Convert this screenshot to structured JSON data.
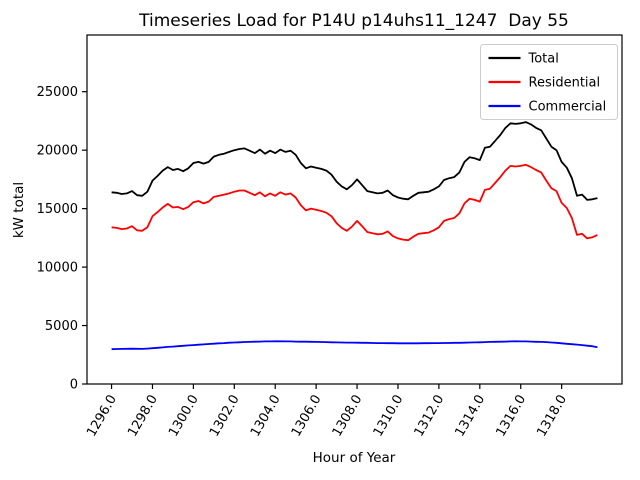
{
  "chart_data": {
    "type": "line",
    "title": "Timeseries Load for P14U p14uhs11_1247  Day 55",
    "xlabel": "Hour of Year",
    "ylabel": "kW total",
    "x_start": 1296.0,
    "x_step": 0.25,
    "n_points": 96,
    "xlim": [
      1294.8,
      1320.95
    ],
    "ylim": [
      0,
      29850
    ],
    "x_ticks": [
      1296,
      1298,
      1300,
      1302,
      1304,
      1306,
      1308,
      1310,
      1312,
      1314,
      1316,
      1318
    ],
    "x_tick_labels": [
      "1296.0",
      "1298.0",
      "1300.0",
      "1302.0",
      "1304.0",
      "1306.0",
      "1308.0",
      "1310.0",
      "1312.0",
      "1314.0",
      "1316.0",
      "1318.0"
    ],
    "x_tick_rotation": 60,
    "y_ticks": [
      0,
      5000,
      10000,
      15000,
      20000,
      25000
    ],
    "y_tick_labels": [
      "0",
      "5000",
      "10000",
      "15000",
      "20000",
      "25000"
    ],
    "grid": false,
    "legend_position": "upper right",
    "series": [
      {
        "name": "Total",
        "color": "#000000",
        "values": [
          16400,
          16350,
          16250,
          16300,
          16500,
          16150,
          16100,
          16450,
          17400,
          17800,
          18250,
          18550,
          18300,
          18400,
          18200,
          18450,
          18900,
          19000,
          18850,
          19000,
          19450,
          19600,
          19700,
          19850,
          20000,
          20100,
          20150,
          19950,
          19750,
          20050,
          19700,
          19950,
          19750,
          20050,
          19850,
          19950,
          19600,
          18900,
          18450,
          18600,
          18500,
          18400,
          18250,
          17900,
          17300,
          16900,
          16650,
          17000,
          17500,
          17000,
          16500,
          16400,
          16300,
          16350,
          16550,
          16150,
          15950,
          15850,
          15800,
          16100,
          16350,
          16400,
          16450,
          16650,
          16900,
          17450,
          17600,
          17700,
          18100,
          19000,
          19400,
          19300,
          19150,
          20200,
          20300,
          20800,
          21300,
          21900,
          22300,
          22250,
          22300,
          22400,
          22200,
          21900,
          21700,
          21000,
          20300,
          20000,
          19000,
          18500,
          17600,
          16100,
          16200,
          15750,
          15800,
          15900
        ]
      },
      {
        "name": "Residential",
        "color": "#ff0000",
        "values": [
          13400,
          13350,
          13250,
          13300,
          13500,
          13150,
          13100,
          13400,
          14350,
          14700,
          15100,
          15400,
          15100,
          15150,
          14950,
          15150,
          15550,
          15650,
          15450,
          15600,
          16000,
          16100,
          16200,
          16300,
          16450,
          16550,
          16550,
          16350,
          16150,
          16400,
          16050,
          16300,
          16100,
          16400,
          16200,
          16300,
          15950,
          15300,
          14850,
          15000,
          14900,
          14800,
          14650,
          14350,
          13750,
          13350,
          13100,
          13450,
          13950,
          13500,
          13000,
          12900,
          12800,
          12850,
          13050,
          12650,
          12450,
          12350,
          12300,
          12600,
          12850,
          12900,
          12950,
          13150,
          13400,
          13950,
          14100,
          14200,
          14600,
          15450,
          15850,
          15750,
          15600,
          16600,
          16700,
          17200,
          17700,
          18250,
          18650,
          18600,
          18650,
          18750,
          18550,
          18300,
          18100,
          17400,
          16750,
          16500,
          15500,
          15050,
          14200,
          12750,
          12850,
          12450,
          12550,
          12750
        ]
      },
      {
        "name": "Commercial",
        "color": "#0000ff",
        "values": [
          2980,
          2990,
          3000,
          3010,
          3020,
          3010,
          3000,
          3030,
          3060,
          3100,
          3130,
          3170,
          3200,
          3230,
          3270,
          3300,
          3330,
          3360,
          3390,
          3420,
          3450,
          3480,
          3500,
          3530,
          3550,
          3570,
          3590,
          3600,
          3620,
          3630,
          3640,
          3640,
          3650,
          3650,
          3640,
          3640,
          3630,
          3620,
          3620,
          3610,
          3600,
          3590,
          3580,
          3570,
          3560,
          3550,
          3540,
          3540,
          3530,
          3520,
          3520,
          3510,
          3500,
          3500,
          3490,
          3490,
          3480,
          3480,
          3480,
          3480,
          3480,
          3490,
          3490,
          3500,
          3500,
          3510,
          3510,
          3520,
          3520,
          3530,
          3550,
          3560,
          3570,
          3580,
          3600,
          3610,
          3620,
          3630,
          3640,
          3650,
          3640,
          3640,
          3630,
          3610,
          3600,
          3580,
          3550,
          3520,
          3480,
          3440,
          3400,
          3370,
          3330,
          3280,
          3230,
          3150
        ]
      }
    ],
    "colors": {
      "background": "#ffffff",
      "spine": "#000000",
      "legend_border": "#cccccc"
    }
  }
}
